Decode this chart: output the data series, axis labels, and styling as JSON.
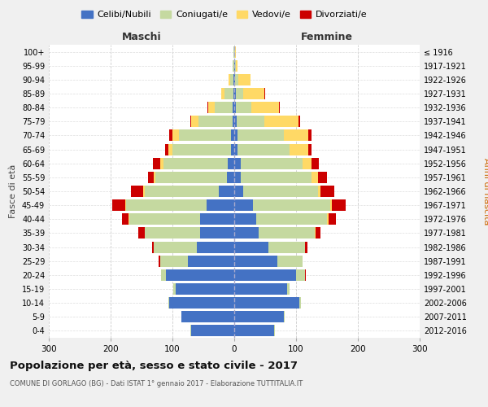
{
  "age_groups": [
    "0-4",
    "5-9",
    "10-14",
    "15-19",
    "20-24",
    "25-29",
    "30-34",
    "35-39",
    "40-44",
    "45-49",
    "50-54",
    "55-59",
    "60-64",
    "65-69",
    "70-74",
    "75-79",
    "80-84",
    "85-89",
    "90-94",
    "95-99",
    "100+"
  ],
  "birth_years": [
    "2012-2016",
    "2007-2011",
    "2002-2006",
    "1997-2001",
    "1992-1996",
    "1987-1991",
    "1982-1986",
    "1977-1981",
    "1972-1976",
    "1967-1971",
    "1962-1966",
    "1957-1961",
    "1952-1956",
    "1947-1951",
    "1942-1946",
    "1937-1941",
    "1932-1936",
    "1927-1931",
    "1922-1926",
    "1917-1921",
    "≤ 1916"
  ],
  "male": {
    "celibe": [
      70,
      85,
      105,
      95,
      110,
      75,
      60,
      55,
      55,
      45,
      25,
      12,
      10,
      5,
      5,
      3,
      2,
      1,
      1,
      0,
      0
    ],
    "coniugato": [
      1,
      1,
      2,
      4,
      8,
      45,
      70,
      90,
      115,
      130,
      120,
      115,
      105,
      95,
      85,
      55,
      30,
      15,
      5,
      2,
      1
    ],
    "vedovo": [
      0,
      0,
      0,
      0,
      0,
      0,
      0,
      0,
      1,
      1,
      2,
      3,
      5,
      7,
      10,
      12,
      10,
      5,
      3,
      1,
      0
    ],
    "divorziato": [
      0,
      0,
      0,
      0,
      1,
      2,
      3,
      10,
      10,
      22,
      20,
      10,
      12,
      5,
      5,
      1,
      1,
      0,
      0,
      0,
      0
    ]
  },
  "female": {
    "nubile": [
      65,
      80,
      105,
      85,
      100,
      70,
      55,
      40,
      35,
      30,
      15,
      10,
      10,
      5,
      5,
      4,
      3,
      2,
      1,
      1,
      0
    ],
    "coniugata": [
      1,
      1,
      3,
      5,
      15,
      40,
      60,
      90,
      115,
      125,
      120,
      115,
      100,
      85,
      75,
      45,
      25,
      12,
      5,
      1,
      1
    ],
    "vedova": [
      0,
      0,
      0,
      0,
      0,
      0,
      0,
      1,
      2,
      3,
      5,
      10,
      15,
      30,
      40,
      55,
      45,
      35,
      20,
      3,
      1
    ],
    "divorziata": [
      0,
      0,
      0,
      0,
      1,
      1,
      3,
      8,
      12,
      22,
      22,
      15,
      12,
      5,
      5,
      2,
      1,
      1,
      0,
      0,
      0
    ]
  },
  "colors": {
    "celibe": "#4472C4",
    "coniugato": "#c5d9a0",
    "vedovo": "#FFD966",
    "divorziato": "#CC0000"
  },
  "title": "Popolazione per età, sesso e stato civile - 2017",
  "subtitle": "COMUNE DI GORLAGO (BG) - Dati ISTAT 1° gennaio 2017 - Elaborazione TUTTITALIA.IT",
  "xlabel_left": "Maschi",
  "xlabel_right": "Femmine",
  "ylabel_left": "Fasce di età",
  "ylabel_right": "Anni di nascita",
  "xlim": 300,
  "bg_color": "#f0f0f0",
  "plot_bg": "#ffffff",
  "legend_labels": [
    "Celibi/Nubili",
    "Coniugati/e",
    "Vedovi/e",
    "Divorziati/e"
  ]
}
